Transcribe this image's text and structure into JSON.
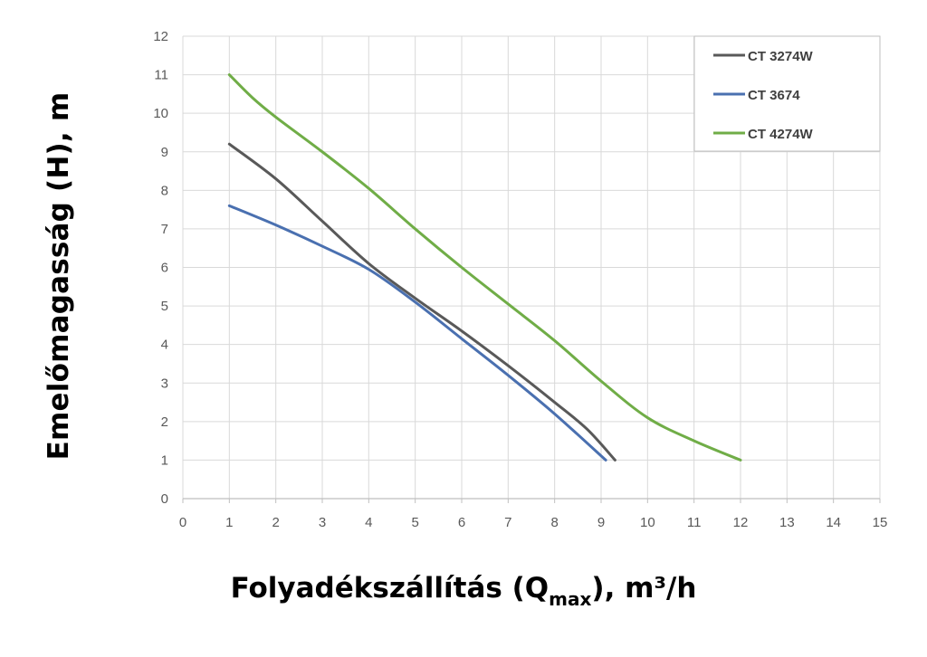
{
  "chart_data": {
    "type": "line",
    "xlabel_parts": {
      "pre": "Folyadékszállítás (Q",
      "sub": "max",
      "post": "), m³/h"
    },
    "ylabel": "Emelőmagasság (H), m",
    "xlim": [
      0,
      15
    ],
    "ylim": [
      0,
      12
    ],
    "x_ticks": [
      "0",
      "1",
      "2",
      "3",
      "4",
      "5",
      "6",
      "7",
      "8",
      "9",
      "10",
      "11",
      "12",
      "13",
      "14",
      "15"
    ],
    "y_ticks": [
      "0",
      "1",
      "2",
      "3",
      "4",
      "5",
      "6",
      "7",
      "8",
      "9",
      "10",
      "11",
      "12"
    ],
    "grid": true,
    "legend_position": "top-right",
    "series": [
      {
        "name": "CT 3274W",
        "color": "#595959",
        "x": [
          1,
          2,
          3,
          4,
          5,
          6,
          7,
          8,
          8.7,
          9.3
        ],
        "y": [
          9.2,
          8.3,
          7.2,
          6.1,
          5.2,
          4.35,
          3.45,
          2.5,
          1.8,
          1.0
        ]
      },
      {
        "name": "CT 3674",
        "color": "#4a70b0",
        "x": [
          1,
          2,
          3,
          4,
          5,
          6,
          7,
          8,
          9.1
        ],
        "y": [
          7.6,
          7.1,
          6.55,
          5.95,
          5.1,
          4.15,
          3.2,
          2.2,
          1.0
        ]
      },
      {
        "name": "CT 4274W",
        "color": "#70ad47",
        "x": [
          1,
          1.5,
          2,
          3,
          4,
          5,
          6,
          7,
          8,
          9,
          10,
          11,
          12
        ],
        "y": [
          11.0,
          10.4,
          9.9,
          9.0,
          8.05,
          7.0,
          6.0,
          5.05,
          4.1,
          3.05,
          2.1,
          1.5,
          1.0
        ]
      }
    ]
  }
}
